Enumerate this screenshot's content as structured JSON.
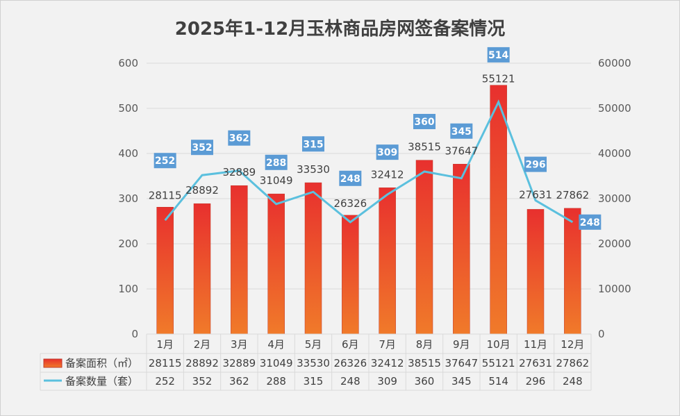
{
  "chart_data": {
    "type": "bar+line",
    "title": "2025年1-12月玉林商品房网签备案情况",
    "categories": [
      "1月",
      "2月",
      "3月",
      "4月",
      "5月",
      "6月",
      "7月",
      "8月",
      "9月",
      "10月",
      "11月",
      "12月"
    ],
    "series": [
      {
        "name": "备案面积（㎡）",
        "type": "bar",
        "axis": "right",
        "color": "#e8452e",
        "values": [
          28115,
          28892,
          32889,
          31049,
          33530,
          26326,
          32412,
          38515,
          37647,
          55121,
          27631,
          27862
        ]
      },
      {
        "name": "备案数量（套）",
        "type": "line",
        "axis": "left",
        "color": "#5bc0de",
        "values": [
          252,
          352,
          362,
          288,
          315,
          248,
          309,
          360,
          345,
          514,
          296,
          248
        ]
      }
    ],
    "left_axis": {
      "range": [
        0,
        600
      ],
      "ticks": [
        "0",
        "100",
        "200",
        "300",
        "400",
        "500",
        "600"
      ]
    },
    "right_axis": {
      "range": [
        0,
        60000
      ],
      "ticks": [
        "0",
        "10000",
        "20000",
        "30000",
        "40000",
        "50000",
        "60000"
      ]
    },
    "grid": true,
    "legend": "data-table-bottom",
    "line_label_color": "#5b9bd5"
  }
}
